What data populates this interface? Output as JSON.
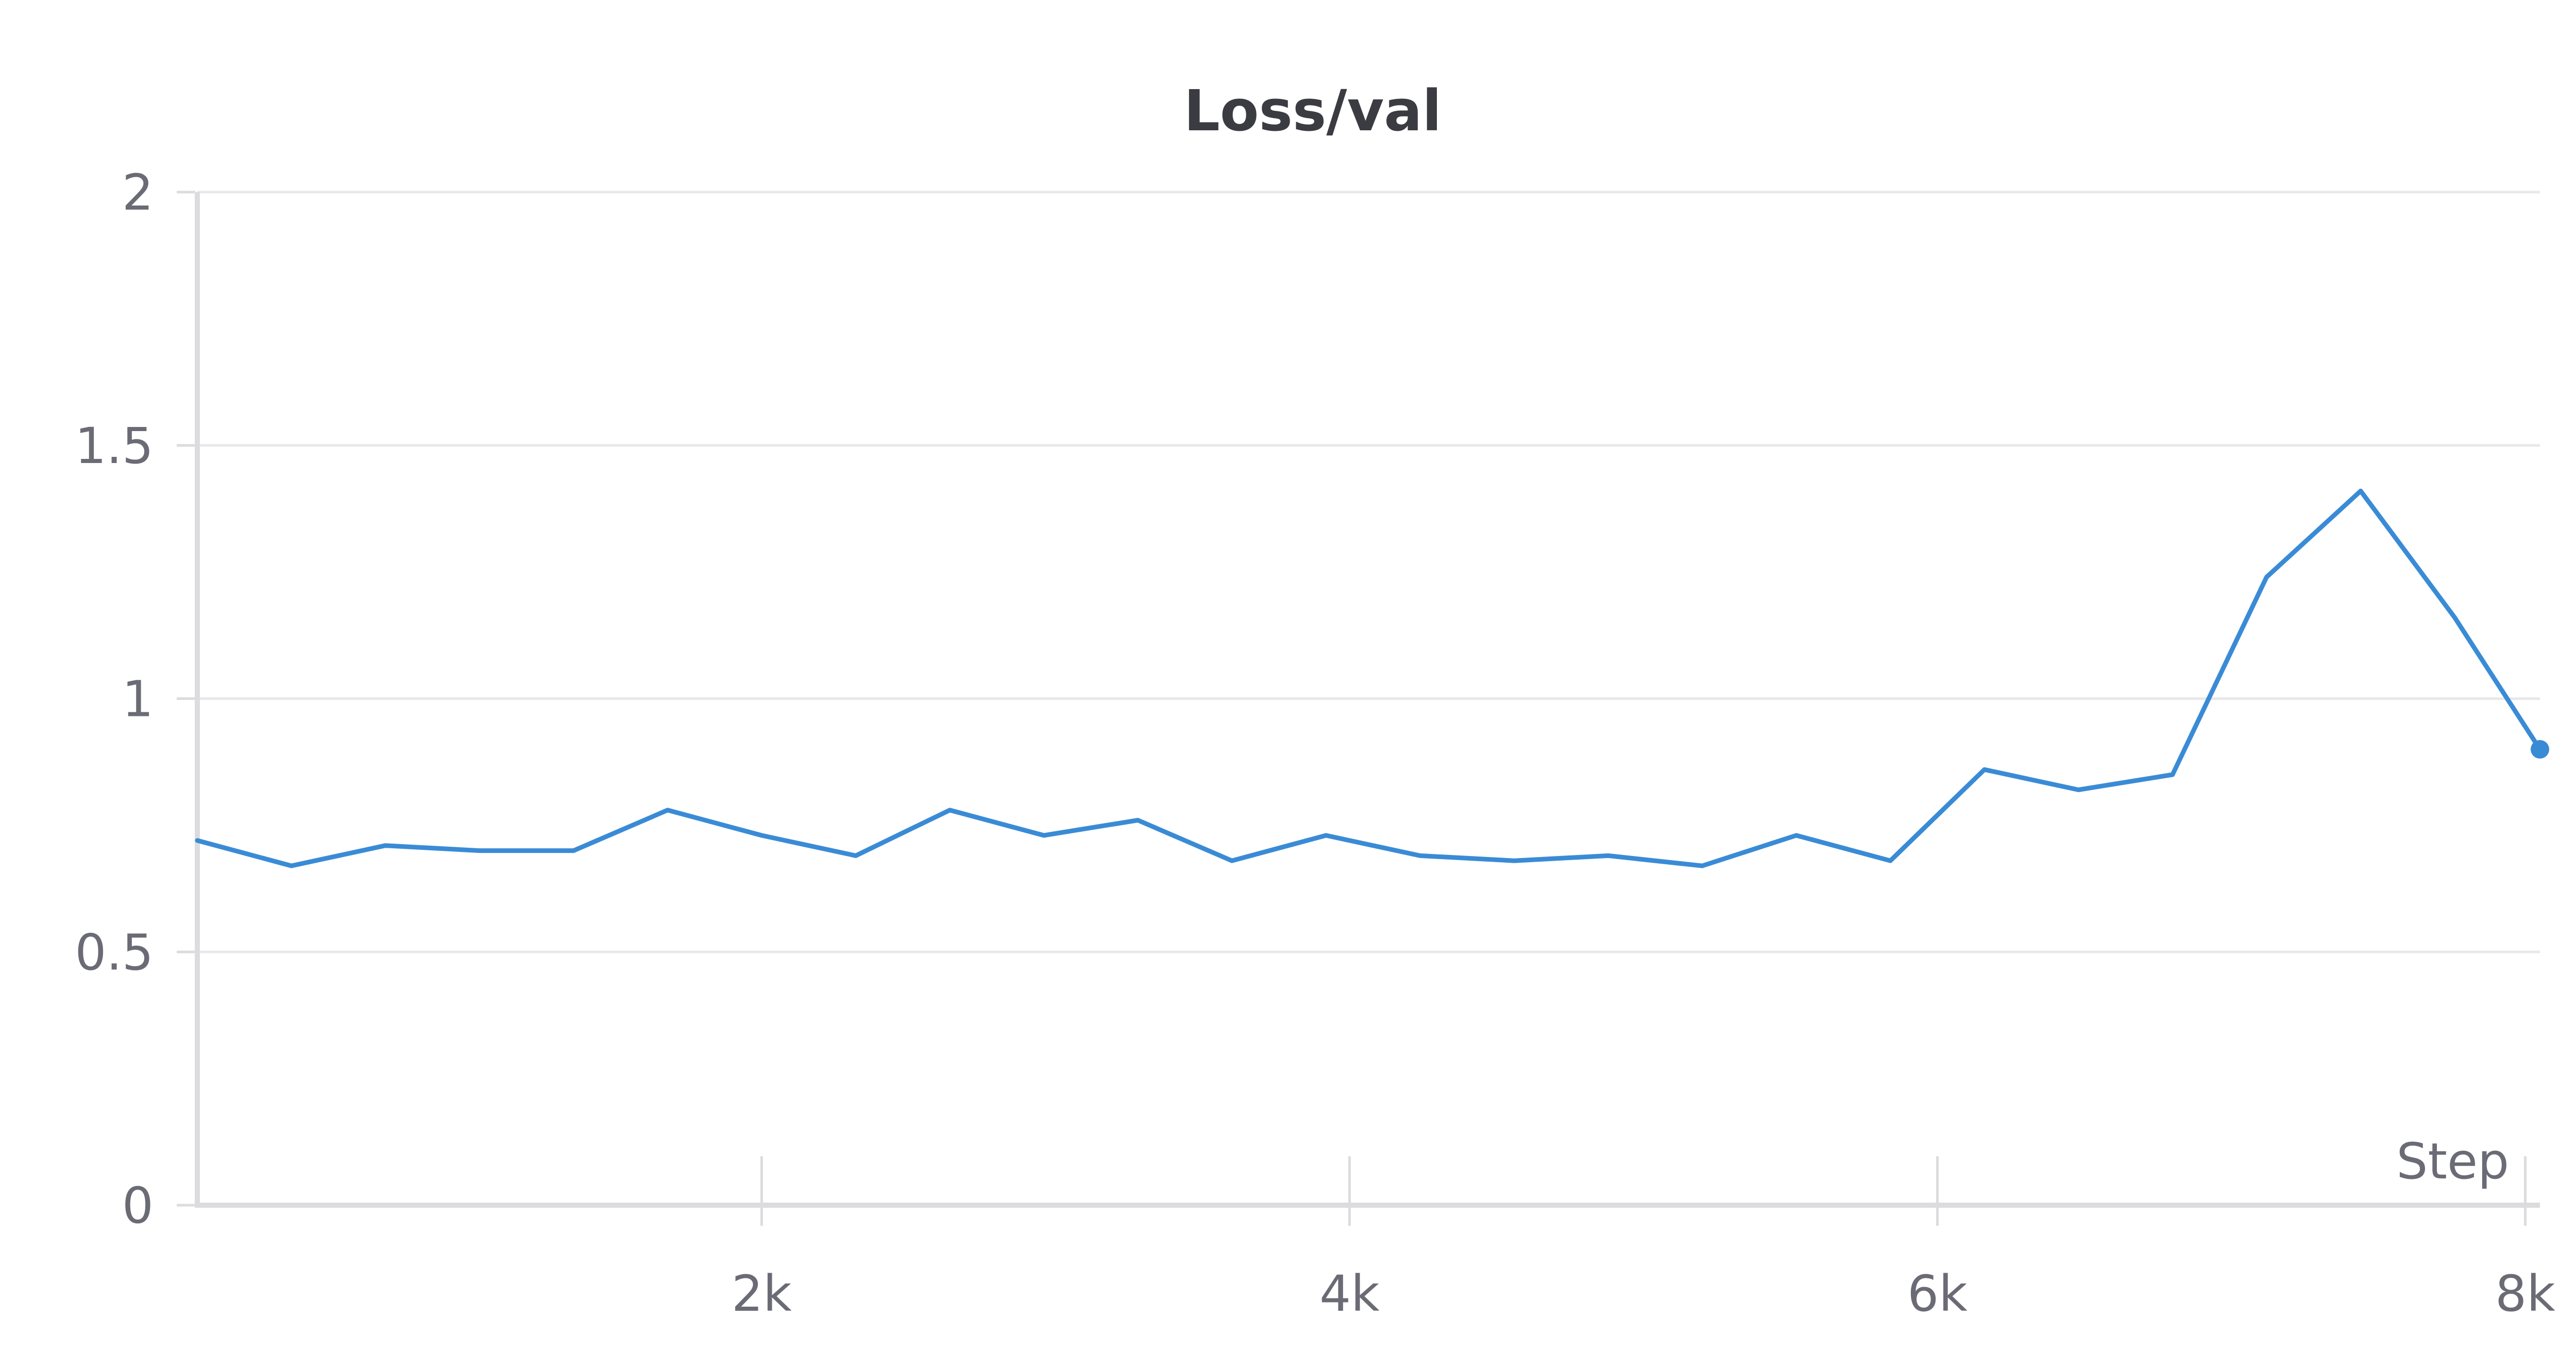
{
  "chart_data": {
    "type": "line",
    "title": "Loss/val",
    "xlabel": "Step",
    "ylabel": "",
    "xlim": [
      80,
      8050
    ],
    "ylim": [
      0,
      2
    ],
    "xticks": [
      {
        "value": 2000,
        "label": "2k"
      },
      {
        "value": 4000,
        "label": "4k"
      },
      {
        "value": 6000,
        "label": "6k"
      },
      {
        "value": 8000,
        "label": "8k"
      }
    ],
    "yticks": [
      {
        "value": 0,
        "label": "0"
      },
      {
        "value": 0.5,
        "label": "0.5"
      },
      {
        "value": 1,
        "label": "1"
      },
      {
        "value": 1.5,
        "label": "1.5"
      },
      {
        "value": 2,
        "label": "2"
      }
    ],
    "grid": true,
    "legend": "none",
    "series": [
      {
        "color": "#3a8bd6",
        "x": [
          80,
          400,
          720,
          1040,
          1360,
          1680,
          2000,
          2320,
          2640,
          2960,
          3280,
          3600,
          3920,
          4240,
          4560,
          4880,
          5200,
          5520,
          5840,
          6160,
          6480,
          6800,
          7120,
          7440,
          7760,
          8050
        ],
        "y": [
          0.72,
          0.67,
          0.71,
          0.7,
          0.7,
          0.78,
          0.73,
          0.69,
          0.78,
          0.73,
          0.76,
          0.68,
          0.73,
          0.69,
          0.68,
          0.69,
          0.67,
          0.73,
          0.68,
          0.86,
          0.82,
          0.85,
          1.24,
          1.41,
          1.16,
          0.9
        ]
      }
    ]
  },
  "colors": {
    "line": "#3a8bd6",
    "grid": "#e8e8e8",
    "axis": "#dcdcdf",
    "tick_text": "#6b6b76",
    "title_text": "#3b3b42"
  }
}
